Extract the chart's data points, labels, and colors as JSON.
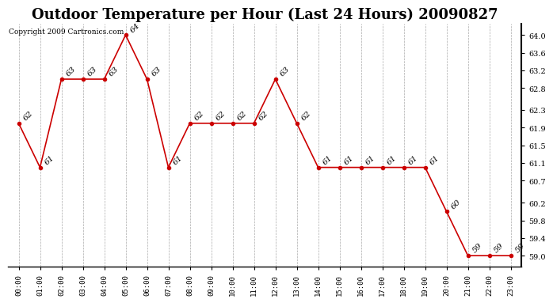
{
  "title": "Outdoor Temperature per Hour (Last 24 Hours) 20090827",
  "copyright": "Copyright 2009 Cartronics.com",
  "hours": [
    "00:00",
    "01:00",
    "02:00",
    "03:00",
    "04:00",
    "05:00",
    "06:00",
    "07:00",
    "08:00",
    "09:00",
    "10:00",
    "11:00",
    "12:00",
    "13:00",
    "14:00",
    "15:00",
    "16:00",
    "17:00",
    "18:00",
    "19:00",
    "20:00",
    "21:00",
    "22:00",
    "23:00"
  ],
  "temperatures": [
    62,
    61,
    63,
    63,
    63,
    64,
    63,
    61,
    62,
    62,
    62,
    62,
    63,
    62,
    61,
    61,
    61,
    61,
    61,
    61,
    60,
    59,
    59,
    59
  ],
  "line_color": "#cc0000",
  "marker": "x",
  "marker_size": 5,
  "marker_color": "#cc0000",
  "bg_color": "#ffffff",
  "grid_color": "#aaaaaa",
  "yticks": [
    59.0,
    59.4,
    59.8,
    60.2,
    60.7,
    61.1,
    61.5,
    61.9,
    62.3,
    62.8,
    63.2,
    63.6,
    64.0
  ],
  "ylim": [
    58.75,
    64.25
  ],
  "title_fontsize": 13,
  "label_fontsize": 7.5,
  "copyright_fontsize": 6.5
}
